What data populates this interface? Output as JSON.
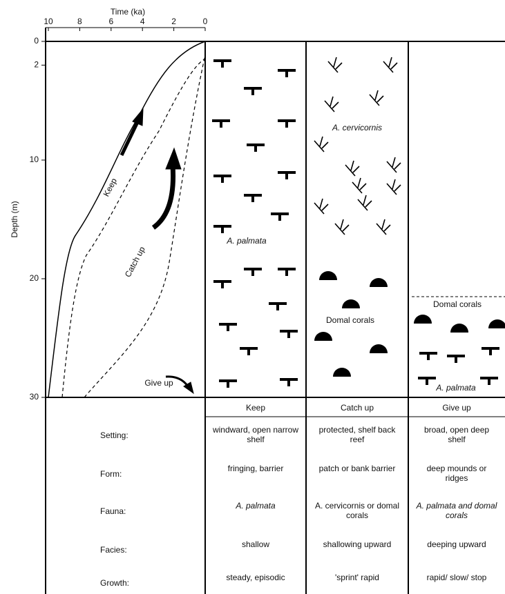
{
  "axes": {
    "x_title": "Time (ka)",
    "y_title": "Depth (m)",
    "xticks": [
      10,
      8,
      6,
      4,
      2,
      0
    ],
    "yticks": [
      0,
      2,
      10,
      20,
      30
    ]
  },
  "curve_labels": {
    "keep": "Keep",
    "catch_up": "Catch up",
    "give_up": "Give up"
  },
  "annotations": {
    "cervicornis": "A. cervicornis",
    "palmata": "A. palmata",
    "domal": "Domal corals",
    "domal_give_up": "Domal corals",
    "palmata_give_up": "A. palmata"
  },
  "table": {
    "header": [
      "Keep",
      "Catch up",
      "Give up"
    ],
    "rows": [
      [
        "Setting:",
        "windward, open narrow shelf",
        "protected, shelf back reef",
        "broad, open deep shelf"
      ],
      [
        "Form:",
        "fringing, barrier",
        "patch or bank barrier",
        "deep mounds or ridges"
      ],
      [
        "Fauna:",
        "A. palmata",
        "A. cervicornis or domal corals",
        "A. palmata and domal corals"
      ],
      [
        "Facies:",
        "shallow",
        "shallowing upward",
        "deeping upward"
      ],
      [
        "Growth:",
        "steady, episodic",
        "'sprint' rapid",
        "rapid/ slow/ stop"
      ]
    ]
  }
}
